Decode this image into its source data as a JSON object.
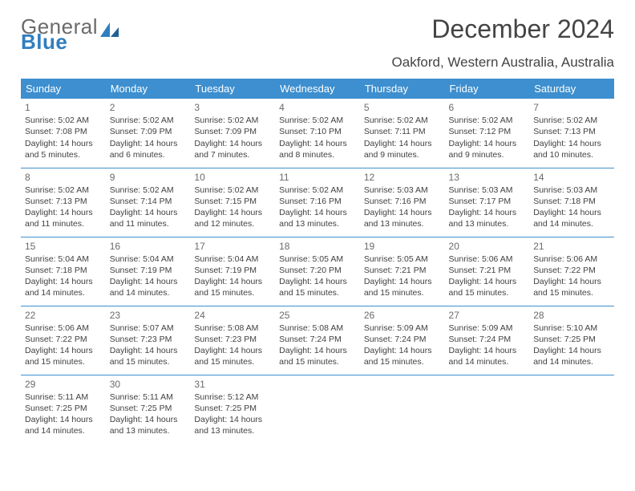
{
  "brand": {
    "part1": "General",
    "part2": "Blue"
  },
  "title": "December 2024",
  "location": "Oakford, Western Australia, Australia",
  "colors": {
    "header_bg": "#3d8fcf",
    "header_text": "#ffffff",
    "row_border": "#3d8fcf",
    "background": "#ffffff",
    "title_color": "#444444",
    "body_text": "#414141",
    "daynum_color": "#6a6a6a"
  },
  "typography": {
    "title_fontsize": 32,
    "subtitle_fontsize": 17,
    "dayheader_fontsize": 13,
    "cell_fontsize": 10.5,
    "daynum_fontsize": 12
  },
  "weekdays": [
    "Sunday",
    "Monday",
    "Tuesday",
    "Wednesday",
    "Thursday",
    "Friday",
    "Saturday"
  ],
  "weeks": [
    [
      {
        "n": "1",
        "sr": "Sunrise: 5:02 AM",
        "ss": "Sunset: 7:08 PM",
        "d1": "Daylight: 14 hours",
        "d2": "and 5 minutes."
      },
      {
        "n": "2",
        "sr": "Sunrise: 5:02 AM",
        "ss": "Sunset: 7:09 PM",
        "d1": "Daylight: 14 hours",
        "d2": "and 6 minutes."
      },
      {
        "n": "3",
        "sr": "Sunrise: 5:02 AM",
        "ss": "Sunset: 7:09 PM",
        "d1": "Daylight: 14 hours",
        "d2": "and 7 minutes."
      },
      {
        "n": "4",
        "sr": "Sunrise: 5:02 AM",
        "ss": "Sunset: 7:10 PM",
        "d1": "Daylight: 14 hours",
        "d2": "and 8 minutes."
      },
      {
        "n": "5",
        "sr": "Sunrise: 5:02 AM",
        "ss": "Sunset: 7:11 PM",
        "d1": "Daylight: 14 hours",
        "d2": "and 9 minutes."
      },
      {
        "n": "6",
        "sr": "Sunrise: 5:02 AM",
        "ss": "Sunset: 7:12 PM",
        "d1": "Daylight: 14 hours",
        "d2": "and 9 minutes."
      },
      {
        "n": "7",
        "sr": "Sunrise: 5:02 AM",
        "ss": "Sunset: 7:13 PM",
        "d1": "Daylight: 14 hours",
        "d2": "and 10 minutes."
      }
    ],
    [
      {
        "n": "8",
        "sr": "Sunrise: 5:02 AM",
        "ss": "Sunset: 7:13 PM",
        "d1": "Daylight: 14 hours",
        "d2": "and 11 minutes."
      },
      {
        "n": "9",
        "sr": "Sunrise: 5:02 AM",
        "ss": "Sunset: 7:14 PM",
        "d1": "Daylight: 14 hours",
        "d2": "and 11 minutes."
      },
      {
        "n": "10",
        "sr": "Sunrise: 5:02 AM",
        "ss": "Sunset: 7:15 PM",
        "d1": "Daylight: 14 hours",
        "d2": "and 12 minutes."
      },
      {
        "n": "11",
        "sr": "Sunrise: 5:02 AM",
        "ss": "Sunset: 7:16 PM",
        "d1": "Daylight: 14 hours",
        "d2": "and 13 minutes."
      },
      {
        "n": "12",
        "sr": "Sunrise: 5:03 AM",
        "ss": "Sunset: 7:16 PM",
        "d1": "Daylight: 14 hours",
        "d2": "and 13 minutes."
      },
      {
        "n": "13",
        "sr": "Sunrise: 5:03 AM",
        "ss": "Sunset: 7:17 PM",
        "d1": "Daylight: 14 hours",
        "d2": "and 13 minutes."
      },
      {
        "n": "14",
        "sr": "Sunrise: 5:03 AM",
        "ss": "Sunset: 7:18 PM",
        "d1": "Daylight: 14 hours",
        "d2": "and 14 minutes."
      }
    ],
    [
      {
        "n": "15",
        "sr": "Sunrise: 5:04 AM",
        "ss": "Sunset: 7:18 PM",
        "d1": "Daylight: 14 hours",
        "d2": "and 14 minutes."
      },
      {
        "n": "16",
        "sr": "Sunrise: 5:04 AM",
        "ss": "Sunset: 7:19 PM",
        "d1": "Daylight: 14 hours",
        "d2": "and 14 minutes."
      },
      {
        "n": "17",
        "sr": "Sunrise: 5:04 AM",
        "ss": "Sunset: 7:19 PM",
        "d1": "Daylight: 14 hours",
        "d2": "and 15 minutes."
      },
      {
        "n": "18",
        "sr": "Sunrise: 5:05 AM",
        "ss": "Sunset: 7:20 PM",
        "d1": "Daylight: 14 hours",
        "d2": "and 15 minutes."
      },
      {
        "n": "19",
        "sr": "Sunrise: 5:05 AM",
        "ss": "Sunset: 7:21 PM",
        "d1": "Daylight: 14 hours",
        "d2": "and 15 minutes."
      },
      {
        "n": "20",
        "sr": "Sunrise: 5:06 AM",
        "ss": "Sunset: 7:21 PM",
        "d1": "Daylight: 14 hours",
        "d2": "and 15 minutes."
      },
      {
        "n": "21",
        "sr": "Sunrise: 5:06 AM",
        "ss": "Sunset: 7:22 PM",
        "d1": "Daylight: 14 hours",
        "d2": "and 15 minutes."
      }
    ],
    [
      {
        "n": "22",
        "sr": "Sunrise: 5:06 AM",
        "ss": "Sunset: 7:22 PM",
        "d1": "Daylight: 14 hours",
        "d2": "and 15 minutes."
      },
      {
        "n": "23",
        "sr": "Sunrise: 5:07 AM",
        "ss": "Sunset: 7:23 PM",
        "d1": "Daylight: 14 hours",
        "d2": "and 15 minutes."
      },
      {
        "n": "24",
        "sr": "Sunrise: 5:08 AM",
        "ss": "Sunset: 7:23 PM",
        "d1": "Daylight: 14 hours",
        "d2": "and 15 minutes."
      },
      {
        "n": "25",
        "sr": "Sunrise: 5:08 AM",
        "ss": "Sunset: 7:24 PM",
        "d1": "Daylight: 14 hours",
        "d2": "and 15 minutes."
      },
      {
        "n": "26",
        "sr": "Sunrise: 5:09 AM",
        "ss": "Sunset: 7:24 PM",
        "d1": "Daylight: 14 hours",
        "d2": "and 15 minutes."
      },
      {
        "n": "27",
        "sr": "Sunrise: 5:09 AM",
        "ss": "Sunset: 7:24 PM",
        "d1": "Daylight: 14 hours",
        "d2": "and 14 minutes."
      },
      {
        "n": "28",
        "sr": "Sunrise: 5:10 AM",
        "ss": "Sunset: 7:25 PM",
        "d1": "Daylight: 14 hours",
        "d2": "and 14 minutes."
      }
    ],
    [
      {
        "n": "29",
        "sr": "Sunrise: 5:11 AM",
        "ss": "Sunset: 7:25 PM",
        "d1": "Daylight: 14 hours",
        "d2": "and 14 minutes."
      },
      {
        "n": "30",
        "sr": "Sunrise: 5:11 AM",
        "ss": "Sunset: 7:25 PM",
        "d1": "Daylight: 14 hours",
        "d2": "and 13 minutes."
      },
      {
        "n": "31",
        "sr": "Sunrise: 5:12 AM",
        "ss": "Sunset: 7:25 PM",
        "d1": "Daylight: 14 hours",
        "d2": "and 13 minutes."
      },
      null,
      null,
      null,
      null
    ]
  ]
}
